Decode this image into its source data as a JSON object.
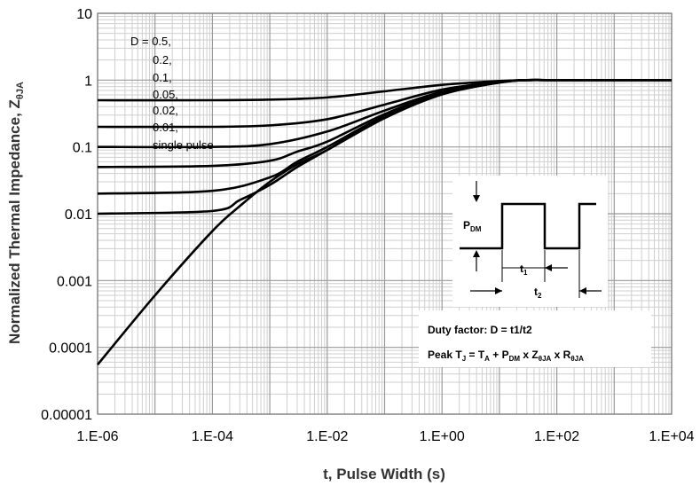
{
  "chart_data": {
    "type": "line",
    "xlabel": "t, Pulse Width (s)",
    "ylabel": "Normalized Thermal Impedance, Z",
    "ylabel_sub": "θJA",
    "xscale": "log",
    "yscale": "log",
    "xlim": [
      1e-06,
      10000.0
    ],
    "ylim": [
      1e-05,
      10
    ],
    "x_tick_labels": [
      "1.E-06",
      "1.E-04",
      "1.E-02",
      "1.E+00",
      "1.E+02",
      "1.E+04"
    ],
    "y_tick_labels": [
      "10",
      "1",
      "0.1",
      "0.01",
      "0.001",
      "0.0001",
      "0.00001"
    ],
    "grid": true,
    "legend_lines": [
      "D = 0.5,",
      "0.2,",
      "0.1,",
      "0.05,",
      "0.02,",
      "0.01,",
      "single pulse"
    ],
    "series": [
      {
        "D": 0.5,
        "x": [
          1e-06,
          0.0001,
          0.001,
          0.01,
          0.1,
          1,
          10,
          30,
          100,
          1000,
          10000
        ],
        "y": [
          0.5,
          0.5,
          0.51,
          0.55,
          0.68,
          0.85,
          0.97,
          1.0,
          1.0,
          1.0,
          1.0
        ]
      },
      {
        "D": 0.2,
        "x": [
          1e-06,
          0.0001,
          0.001,
          0.01,
          0.1,
          1,
          10,
          30,
          100,
          1000,
          10000
        ],
        "y": [
          0.2,
          0.2,
          0.21,
          0.26,
          0.43,
          0.72,
          0.95,
          1.0,
          1.0,
          1.0,
          1.0
        ]
      },
      {
        "D": 0.1,
        "x": [
          1e-06,
          0.0001,
          0.001,
          0.01,
          0.1,
          1,
          10,
          30,
          100,
          1000,
          10000
        ],
        "y": [
          0.1,
          0.1,
          0.11,
          0.17,
          0.35,
          0.67,
          0.94,
          1.0,
          1.0,
          1.0,
          1.0
        ]
      },
      {
        "D": 0.05,
        "x": [
          1e-06,
          0.0001,
          0.001,
          0.003,
          0.01,
          0.1,
          1,
          10,
          30,
          100,
          10000
        ],
        "y": [
          0.05,
          0.052,
          0.062,
          0.085,
          0.12,
          0.31,
          0.64,
          0.93,
          1.0,
          1.0,
          1.0
        ]
      },
      {
        "D": 0.02,
        "x": [
          1e-06,
          0.0001,
          0.001,
          0.003,
          0.01,
          0.1,
          1,
          10,
          30,
          100,
          10000
        ],
        "y": [
          0.02,
          0.022,
          0.035,
          0.06,
          0.1,
          0.29,
          0.62,
          0.93,
          1.0,
          1.0,
          1.0
        ]
      },
      {
        "D": 0.01,
        "x": [
          1e-06,
          0.0001,
          0.0003,
          0.001,
          0.003,
          0.01,
          0.1,
          1,
          10,
          30,
          100,
          10000
        ],
        "y": [
          0.01,
          0.011,
          0.016,
          0.027,
          0.05,
          0.09,
          0.28,
          0.62,
          0.92,
          1.0,
          1.0,
          1.0
        ]
      },
      {
        "D": "single pulse",
        "x": [
          1e-06,
          1e-05,
          0.0001,
          0.0003,
          0.001,
          0.003,
          0.01,
          0.1,
          1,
          10,
          30,
          100,
          10000
        ],
        "y": [
          5.5e-05,
          0.0006,
          0.0055,
          0.013,
          0.03,
          0.055,
          0.09,
          0.27,
          0.61,
          0.92,
          1.0,
          1.0,
          1.0
        ]
      }
    ]
  },
  "inset": {
    "pdm_label": "P",
    "pdm_sub": "DM",
    "t1_label": "t",
    "t1_sub": "1",
    "t2_label": "t",
    "t2_sub": "2"
  },
  "notes": {
    "duty": "Duty factor: D = t1/t2",
    "peak_a": "Peak T",
    "peak_a_sub": "J",
    "peak_b": " = T",
    "peak_b_sub": "A",
    "peak_c": " + P",
    "peak_c_sub": "DM",
    "peak_d": " x Z",
    "peak_d_sub": "θJA",
    "peak_e": " x R",
    "peak_e_sub": "θJA"
  }
}
